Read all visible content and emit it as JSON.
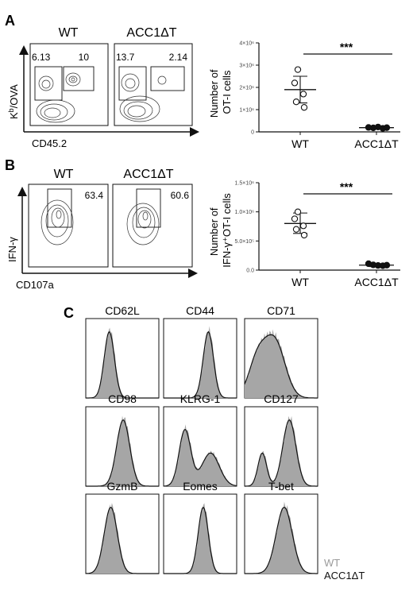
{
  "panels": {
    "A": {
      "letter": "A",
      "groups": [
        "WT",
        "ACC1ΔT"
      ],
      "gates": [
        {
          "left": "6.13",
          "right": "10"
        },
        {
          "left": "13.7",
          "right": "2.14"
        }
      ],
      "y_axis_label_base": "K",
      "y_axis_label_sup": "b",
      "y_axis_label_rest": "/OVA",
      "x_axis_label": "CD45.2",
      "chart_ylabel_line1": "Number of",
      "chart_ylabel_line2": "OT-I cells",
      "significance": "***"
    },
    "B": {
      "letter": "B",
      "groups": [
        "WT",
        "ACC1ΔT"
      ],
      "gates": [
        "63.4",
        "60.6"
      ],
      "y_axis_label": "IFN-γ",
      "x_axis_label": "CD107a",
      "chart_ylabel_line1": "Number of",
      "chart_ylabel_line2": "IFN-γ⁺OT-I cells",
      "significance": "***"
    },
    "C": {
      "letter": "C",
      "markers": [
        "CD62L",
        "CD44",
        "CD71",
        "CD98",
        "KLRG-1",
        "CD127",
        "GzmB",
        "Eomes",
        "T-bet"
      ],
      "legend": [
        "WT",
        "ACC1ΔT"
      ]
    }
  },
  "colors": {
    "filled_histogram": "#a6a6a6",
    "wt_point": "#ffffff",
    "ko_point": "#111111"
  },
  "chart_data": [
    {
      "type": "scatter",
      "panel": "A",
      "categories": [
        "WT",
        "ACC1ΔT"
      ],
      "ylabel": "Number of OT-I cells",
      "ylim": [
        0,
        4000000
      ],
      "yticks": [
        0,
        1000000,
        2000000,
        3000000,
        4000000
      ],
      "ytick_labels": [
        "0",
        "1×10⁶",
        "2×10⁶",
        "3×10⁶",
        "4×10⁶"
      ],
      "series": [
        {
          "values": [
            2800000,
            2200000,
            1700000,
            1350000,
            1100000
          ],
          "mean": 1900000,
          "sd_low": 1300000,
          "sd_high": 2500000
        },
        {
          "values": [
            200000,
            180000,
            220000,
            160000,
            190000
          ],
          "mean": 190000,
          "sd_low": 150000,
          "sd_high": 230000
        }
      ],
      "significance": "***"
    },
    {
      "type": "scatter",
      "panel": "B",
      "categories": [
        "WT",
        "ACC1ΔT"
      ],
      "ylabel": "Number of IFN-γ⁺OT-I cells",
      "ylim": [
        0,
        1500000
      ],
      "yticks": [
        0,
        500000,
        1000000,
        1500000
      ],
      "ytick_labels": [
        "0.0",
        "5.0×10⁵",
        "1.0×10⁶",
        "1.5×10⁶"
      ],
      "series": [
        {
          "values": [
            1000000,
            880000,
            760000,
            700000,
            600000
          ],
          "mean": 800000,
          "sd_low": 630000,
          "sd_high": 980000
        },
        {
          "values": [
            110000,
            90000,
            80000,
            75000,
            85000
          ],
          "mean": 85000,
          "sd_low": 60000,
          "sd_high": 110000
        }
      ],
      "significance": "***"
    }
  ]
}
